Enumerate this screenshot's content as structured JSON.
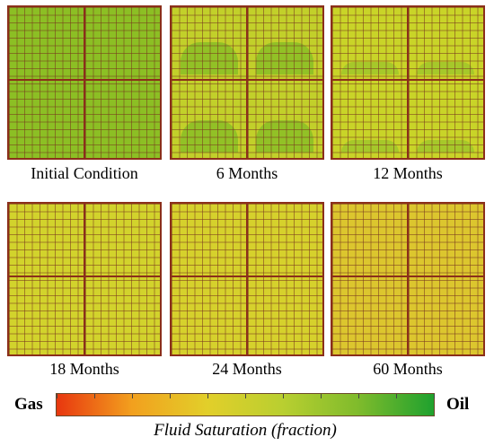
{
  "panels": [
    {
      "caption": "Initial Condition",
      "bg": "#8cbf24",
      "zone_color": "#8cbf24",
      "zone_depth": 0
    },
    {
      "caption": "6 Months",
      "bg": "#c2d02a",
      "zone_color": "#92c126",
      "zone_depth": 0.45
    },
    {
      "caption": "12 Months",
      "bg": "#c9d428",
      "zone_color": "#a6c82a",
      "zone_depth": 0.18
    },
    {
      "caption": "18 Months",
      "bg": "#d2d32c",
      "zone_color": "#d2d32c",
      "zone_depth": 0
    },
    {
      "caption": "24 Months",
      "bg": "#d6d12c",
      "zone_color": "#d6d12c",
      "zone_depth": 0
    },
    {
      "caption": "60 Months",
      "bg": "#dcc62e",
      "zone_color": "#dcc62e",
      "zone_depth": 0
    }
  ],
  "legend": {
    "left_label": "Gas",
    "right_label": "Oil",
    "title": "Fluid Saturation (fraction)",
    "colors": [
      "#e8370f",
      "#f2a01e",
      "#e2cf2a",
      "#b9cf30",
      "#7fbb2c",
      "#1fa12e"
    ],
    "ticks": 11
  }
}
